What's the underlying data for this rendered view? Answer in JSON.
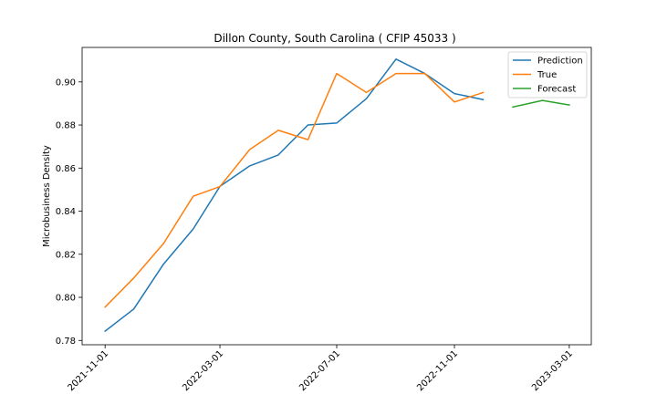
{
  "chart_data": {
    "type": "line",
    "title": "Dillon County, South Carolina ( CFIP 45033 )",
    "xlabel": "",
    "ylabel": "Microbusiness Density",
    "ylim": [
      0.778,
      0.916
    ],
    "xlim": [
      "2021-10-08",
      "2023-03-24"
    ],
    "yticks": [
      0.78,
      0.8,
      0.82,
      0.84,
      0.86,
      0.88,
      0.9
    ],
    "ytick_labels": [
      "0.78",
      "0.80",
      "0.82",
      "0.84",
      "0.86",
      "0.88",
      "0.90"
    ],
    "xticks": [
      "2021-11-01",
      "2022-03-01",
      "2022-07-01",
      "2022-11-01",
      "2023-03-01"
    ],
    "legend_position": "top-right",
    "grid": false,
    "series": [
      {
        "name": "Prediction",
        "color": "#1f77b4",
        "x": [
          "2021-11-01",
          "2021-12-01",
          "2022-01-01",
          "2022-02-01",
          "2022-03-01",
          "2022-04-01",
          "2022-05-01",
          "2022-06-01",
          "2022-07-01",
          "2022-08-01",
          "2022-09-01",
          "2022-10-01",
          "2022-11-01",
          "2022-12-01"
        ],
        "values": [
          0.7843,
          0.7946,
          0.8154,
          0.8317,
          0.8515,
          0.861,
          0.8661,
          0.88,
          0.8809,
          0.8922,
          0.9106,
          0.9039,
          0.8946,
          0.8918
        ]
      },
      {
        "name": "True",
        "color": "#ff7f0e",
        "x": [
          "2021-11-01",
          "2021-12-01",
          "2022-01-01",
          "2022-02-01",
          "2022-03-01",
          "2022-04-01",
          "2022-05-01",
          "2022-06-01",
          "2022-07-01",
          "2022-08-01",
          "2022-09-01",
          "2022-10-01",
          "2022-11-01",
          "2022-12-01"
        ],
        "values": [
          0.7955,
          0.809,
          0.825,
          0.8469,
          0.8514,
          0.8686,
          0.8775,
          0.8732,
          0.9039,
          0.8951,
          0.9039,
          0.9039,
          0.8907,
          0.8951
        ]
      },
      {
        "name": "Forecast",
        "color": "#2ca02c",
        "x": [
          "2023-01-01",
          "2023-02-01",
          "2023-03-01"
        ],
        "values": [
          0.8883,
          0.8914,
          0.8893
        ]
      }
    ]
  }
}
